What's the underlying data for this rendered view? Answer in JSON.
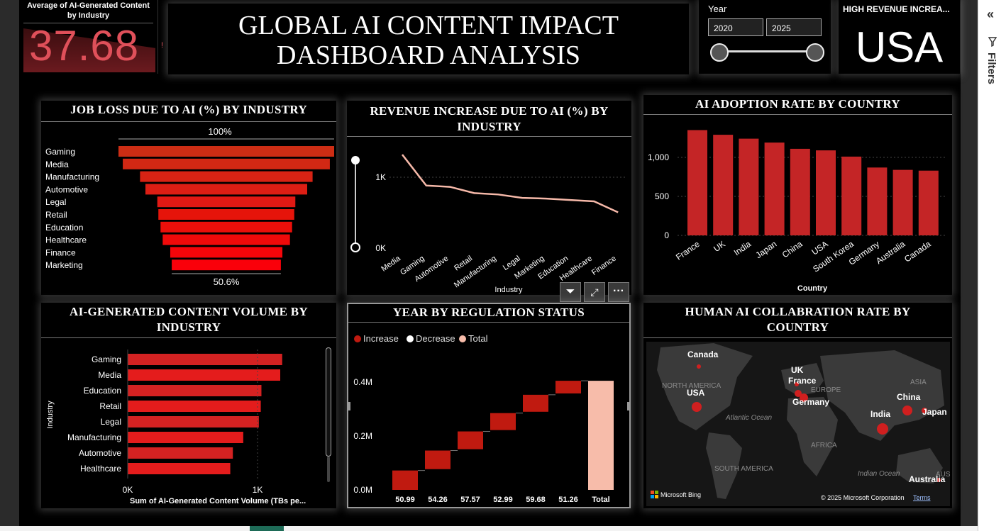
{
  "kpi": {
    "title": "Average of AI-Generated Content by Industry",
    "value": "37.68",
    "indicator": "!"
  },
  "header": {
    "title_line1": "GLOBAL AI CONTENT IMPACT",
    "title_line2": "DASHBOARD ANALYSIS"
  },
  "year_slicer": {
    "label": "Year",
    "from": "2020",
    "to": "2025",
    "range": [
      0,
      1
    ]
  },
  "high_revenue": {
    "title": "HIGH REVENUE INCREA...",
    "value": "USA"
  },
  "filters_pane": {
    "label": "Filters",
    "collapse_icon": "chevrons-left-icon",
    "filter_icon": "filter-icon"
  },
  "visual_header": {
    "filter_icon": "filter-icon",
    "focus_icon": "focus-mode-icon",
    "more_icon": "more-options-icon"
  },
  "colors": {
    "accent": "#d42a2a",
    "bar_red": "#e52222",
    "total": "#f7bcaa",
    "line": "#f6b9a9"
  },
  "chart_data": [
    {
      "id": "job_loss",
      "type": "bar",
      "title": "JOB LOSS DUE TO AI (%) BY INDUSTRY",
      "categories": [
        "Gaming",
        "Media",
        "Manufacturing",
        "Automotive",
        "Legal",
        "Retail",
        "Education",
        "Healthcare",
        "Finance",
        "Marketing"
      ],
      "values": [
        100,
        96,
        80,
        75,
        64,
        63,
        61,
        59,
        52,
        50.6
      ],
      "top_label": "100%",
      "bottom_label": "50.6%"
    },
    {
      "id": "revenue",
      "type": "line",
      "title": "REVENUE INCREASE DUE TO AI (%) BY INDUSTRY",
      "categories": [
        "Media",
        "Gaming",
        "Automotive",
        "Retail",
        "Manufacturing",
        "Legal",
        "Marketing",
        "Education",
        "Healthcare",
        "Finance"
      ],
      "values": [
        1350,
        900,
        880,
        790,
        770,
        720,
        710,
        690,
        670,
        510
      ],
      "xlabel": "Industry",
      "yticks": [
        "1K",
        "0K"
      ],
      "ylim": [
        0,
        1650
      ]
    },
    {
      "id": "adoption",
      "type": "bar",
      "title": "AI ADOPTION RATE BY COUNTRY",
      "categories": [
        "France",
        "UK",
        "India",
        "Japan",
        "China",
        "USA",
        "South Korea",
        "Germany",
        "Australia",
        "Canada"
      ],
      "values": [
        1350,
        1290,
        1240,
        1190,
        1110,
        1090,
        1010,
        870,
        840,
        830
      ],
      "xlabel": "Country",
      "yticks": [
        "1,000",
        "500",
        "0"
      ],
      "ylim": [
        0,
        1400
      ]
    },
    {
      "id": "content_volume",
      "type": "bar",
      "title": "AI-GENERATED CONTENT VOLUME BY INDUSTRY",
      "categories": [
        "Gaming",
        "Media",
        "Education",
        "Retail",
        "Legal",
        "Manufacturing",
        "Automotive",
        "Healthcare"
      ],
      "values": [
        1190,
        1175,
        1030,
        1025,
        1010,
        890,
        810,
        790
      ],
      "xlabel": "Sum of AI-Generated Content Volume (TBs pe...",
      "ylabel": "Industry",
      "xticks": [
        "0K",
        "1K"
      ],
      "xlim": [
        0,
        1500
      ]
    },
    {
      "id": "regulation",
      "type": "bar",
      "title": "YEAR BY REGULATION STATUS",
      "legend": [
        "Increase",
        "Decrease",
        "Total"
      ],
      "categories": [
        "50.99",
        "54.26",
        "57.57",
        "52.99",
        "59.68",
        "51.26",
        "Total"
      ],
      "steps": [
        [
          0,
          0.072
        ],
        [
          0.077,
          0.146
        ],
        [
          0.151,
          0.217
        ],
        [
          0.222,
          0.285
        ],
        [
          0.29,
          0.353
        ],
        [
          0.358,
          0.405
        ],
        [
          0,
          0.405
        ]
      ],
      "yticks": [
        "0.4M",
        "0.2M",
        "0.0M"
      ],
      "ylim": [
        0,
        0.5
      ]
    },
    {
      "id": "collab_map",
      "type": "map",
      "title": "HUMAN AI COLLABRATION RATE BY COUNTRY",
      "countries": [
        "Canada",
        "UK",
        "France",
        "Germany",
        "USA",
        "China",
        "Japan",
        "India",
        "Australia"
      ],
      "region_labels": [
        "NORTH AMERICA",
        "EUROPE",
        "ASIA",
        "Atlantic Ocean",
        "AFRICA",
        "SOUTH AMERICA",
        "Indian Ocean",
        "AUSTR"
      ],
      "attribution": "Microsoft Bing",
      "copyright": "© 2025 Microsoft Corporation",
      "terms": "Terms"
    }
  ]
}
